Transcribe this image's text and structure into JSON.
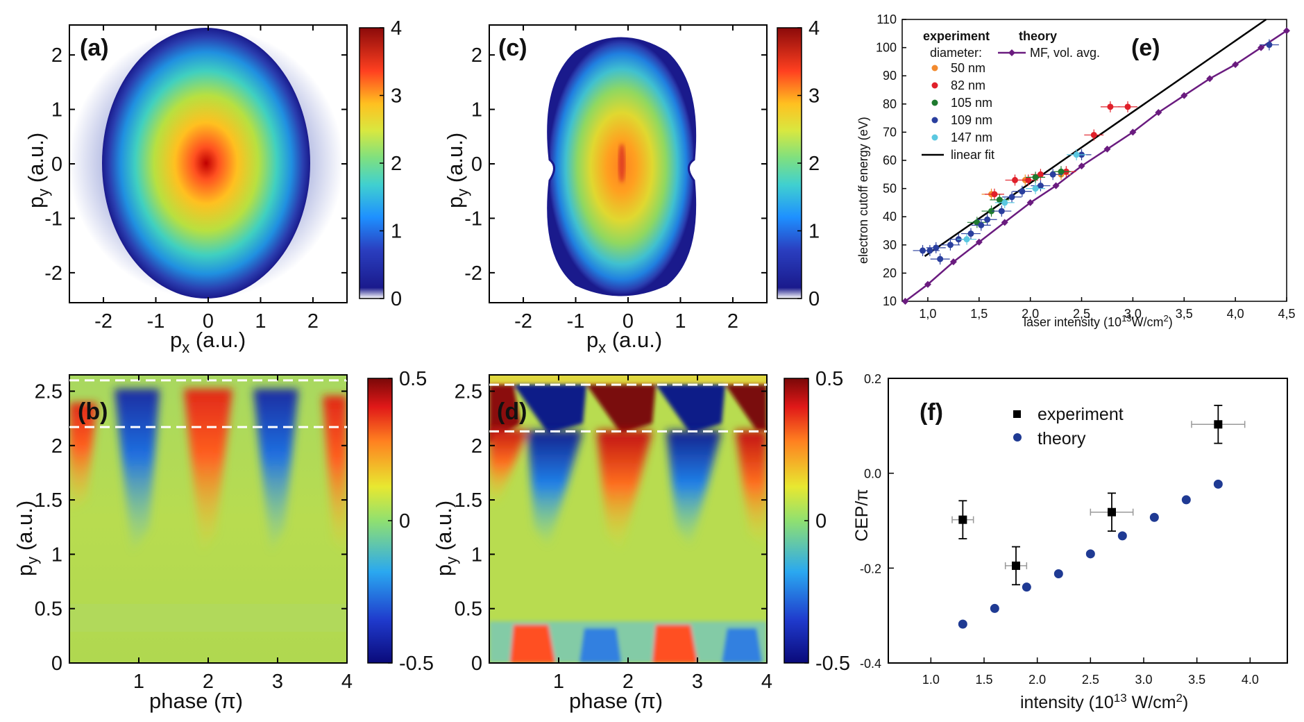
{
  "colors": {
    "jet": [
      "#00007f",
      "#0000ff",
      "#0080ff",
      "#00ffff",
      "#80ff80",
      "#ffff00",
      "#ff8000",
      "#ff0000",
      "#7f0000"
    ],
    "purple": "#6a1b7f",
    "navy": "#1f3a93",
    "d50": "#f28a2e",
    "d82": "#e0202a",
    "d105": "#1e7a2e",
    "d109": "#2a3f9e",
    "d147": "#5bc8e0"
  },
  "chart_data": [
    {
      "id": "a",
      "type": "heatmap",
      "panel_label": "(a)",
      "xlabel_main": "p",
      "xlabel_sub": "x",
      "xlabel_unit": " (a.u.)",
      "ylabel_main": "p",
      "ylabel_sub": "y",
      "ylabel_unit": " (a.u.)",
      "xlim": [
        -2.65,
        2.65
      ],
      "ylim": [
        -2.55,
        2.55
      ],
      "xticks": [
        -2,
        -1,
        0,
        1,
        2
      ],
      "yticks": [
        -2,
        -1,
        0,
        1,
        2
      ],
      "colorbar": {
        "range": [
          0,
          4
        ],
        "ticks": [
          0,
          1,
          2,
          3,
          4
        ]
      }
    },
    {
      "id": "c",
      "type": "heatmap",
      "panel_label": "(c)",
      "xlabel_main": "p",
      "xlabel_sub": "x",
      "xlabel_unit": " (a.u.)",
      "ylabel_main": "p",
      "ylabel_sub": "y",
      "ylabel_unit": " (a.u.)",
      "xlim": [
        -2.65,
        2.65
      ],
      "ylim": [
        -2.55,
        2.55
      ],
      "xticks": [
        -2,
        -1,
        0,
        1,
        2
      ],
      "yticks": [
        -2,
        -1,
        0,
        1,
        2
      ],
      "colorbar": {
        "range": [
          0,
          4
        ],
        "ticks": [
          0,
          1,
          2,
          3,
          4
        ]
      }
    },
    {
      "id": "b",
      "type": "heatmap",
      "panel_label": "(b)",
      "xlabel": "phase (π)",
      "ylabel_main": "p",
      "ylabel_sub": "y",
      "ylabel_unit": " (a.u.)",
      "xlim": [
        0,
        4
      ],
      "ylim": [
        0,
        2.65
      ],
      "xticks": [
        1,
        2,
        3,
        4
      ],
      "yticks": [
        0,
        0.5,
        1,
        1.5,
        2,
        2.5
      ],
      "dashed_lines_y": [
        2.6,
        2.17
      ],
      "colorbar": {
        "range": [
          -0.5,
          0.5
        ],
        "ticks": [
          -0.5,
          0,
          0.5
        ]
      }
    },
    {
      "id": "d",
      "type": "heatmap",
      "panel_label": "(d)",
      "xlabel": "phase (π)",
      "ylabel_main": "p",
      "ylabel_sub": "y",
      "ylabel_unit": " (a.u.)",
      "xlim": [
        0,
        4
      ],
      "ylim": [
        0,
        2.65
      ],
      "xticks": [
        1,
        2,
        3,
        4
      ],
      "yticks": [
        0,
        0.5,
        1,
        1.5,
        2,
        2.5
      ],
      "dashed_lines_y": [
        2.56,
        2.13
      ],
      "colorbar": {
        "range": [
          -0.5,
          0.5
        ],
        "ticks": [
          -0.5,
          0,
          0.5
        ]
      }
    },
    {
      "id": "e",
      "type": "scatter",
      "panel_label": "(e)",
      "xlabel": "laser intensity (10",
      "xlabel_sup": "13",
      "xlabel_tail": "W/cm",
      "xlabel_sup2": "2",
      "xlabel_end": ")",
      "ylabel": "electron cutoff energy (eV)",
      "xlim": [
        0.75,
        4.5
      ],
      "ylim": [
        10,
        110
      ],
      "xticks": [
        1.0,
        1.5,
        2.0,
        2.5,
        3.0,
        3.5,
        4.0,
        4.5
      ],
      "xtick_labels": [
        "1,0",
        "1,5",
        "2,0",
        "2,5",
        "3,0",
        "3,5",
        "4,0",
        "4,5"
      ],
      "yticks": [
        10,
        20,
        30,
        40,
        50,
        60,
        70,
        80,
        90,
        100,
        110
      ],
      "legend": {
        "experiment_title": "experiment",
        "theory_title": "theory",
        "diameter_label": "diameter:",
        "entries": [
          "50 nm",
          "82 nm",
          "105 nm",
          "109 nm",
          "147 nm",
          "linear fit"
        ],
        "theory_entry": "MF, vol. avg."
      },
      "series": [
        {
          "name": "50 nm",
          "points": [
            [
              1.62,
              48
            ],
            [
              1.95,
              53
            ],
            [
              2.3,
              55
            ]
          ]
        },
        {
          "name": "82 nm",
          "points": [
            [
              1.65,
              48
            ],
            [
              1.85,
              53
            ],
            [
              1.98,
              53
            ],
            [
              2.1,
              55
            ],
            [
              2.35,
              56
            ],
            [
              2.62,
              69
            ],
            [
              2.78,
              79
            ],
            [
              2.95,
              79
            ]
          ]
        },
        {
          "name": "105 nm",
          "points": [
            [
              1.48,
              38
            ],
            [
              1.62,
              42
            ],
            [
              1.7,
              46
            ],
            [
              2.05,
              54
            ],
            [
              2.3,
              56
            ]
          ]
        },
        {
          "name": "109 nm",
          "points": [
            [
              0.95,
              28
            ],
            [
              1.02,
              28
            ],
            [
              1.08,
              29
            ],
            [
              1.12,
              25
            ],
            [
              1.22,
              30
            ],
            [
              1.3,
              32
            ],
            [
              1.42,
              34
            ],
            [
              1.52,
              37
            ],
            [
              1.58,
              39
            ],
            [
              1.72,
              42
            ],
            [
              1.82,
              47
            ],
            [
              1.92,
              49
            ],
            [
              2.1,
              51
            ],
            [
              2.22,
              55
            ],
            [
              2.5,
              62
            ],
            [
              4.33,
              101
            ]
          ]
        },
        {
          "name": "147 nm",
          "points": [
            [
              1.38,
              32
            ],
            [
              1.75,
              45
            ],
            [
              2.05,
              50
            ],
            [
              2.45,
              62
            ]
          ]
        }
      ],
      "linear_fit": {
        "name": "linear fit",
        "line": [
          [
            0.97,
            26
          ],
          [
            4.3,
            110
          ]
        ]
      },
      "theory": {
        "name": "MF, vol. avg.",
        "points": [
          [
            0.78,
            10
          ],
          [
            1.0,
            16
          ],
          [
            1.25,
            24
          ],
          [
            1.5,
            31
          ],
          [
            1.75,
            38
          ],
          [
            2.0,
            45
          ],
          [
            2.25,
            51
          ],
          [
            2.5,
            58
          ],
          [
            2.75,
            64
          ],
          [
            3.0,
            70
          ],
          [
            3.25,
            77
          ],
          [
            3.5,
            83
          ],
          [
            3.75,
            89
          ],
          [
            4.0,
            94
          ],
          [
            4.25,
            100
          ],
          [
            4.5,
            106
          ]
        ]
      }
    },
    {
      "id": "f",
      "type": "scatter",
      "panel_label": "(f)",
      "xlabel": "intensity (10",
      "xlabel_sup": "13",
      "xlabel_tail": " W/cm",
      "xlabel_sup2": "2",
      "xlabel_end": ")",
      "ylabel": "CEP/π",
      "xlim": [
        0.6,
        4.35
      ],
      "ylim": [
        -0.4,
        0.2
      ],
      "xticks": [
        1.0,
        1.5,
        2.0,
        2.5,
        3.0,
        3.5,
        4.0
      ],
      "xtick_labels": [
        "1.0",
        "1.5",
        "2.0",
        "2.5",
        "3.0",
        "3.5",
        "4.0"
      ],
      "yticks": [
        -0.4,
        -0.2,
        0.0,
        0.2
      ],
      "ytick_labels": [
        "-0.4",
        "-0.2",
        "0.0",
        "0.2"
      ],
      "legend": [
        "experiment",
        "theory"
      ],
      "series": [
        {
          "name": "experiment",
          "points": [
            {
              "x": 1.3,
              "y": -0.098,
              "xerr": 0.1,
              "yerr": 0.04
            },
            {
              "x": 1.8,
              "y": -0.195,
              "xerr": 0.1,
              "yerr": 0.04
            },
            {
              "x": 2.7,
              "y": -0.082,
              "xerr": 0.2,
              "yerr": 0.04
            },
            {
              "x": 3.7,
              "y": 0.103,
              "xerr": 0.25,
              "yerr": 0.04
            }
          ]
        },
        {
          "name": "theory",
          "points": [
            [
              1.3,
              -0.318
            ],
            [
              1.6,
              -0.285
            ],
            [
              1.9,
              -0.24
            ],
            [
              2.2,
              -0.212
            ],
            [
              2.5,
              -0.17
            ],
            [
              2.8,
              -0.132
            ],
            [
              3.1,
              -0.093
            ],
            [
              3.4,
              -0.056
            ],
            [
              3.7,
              -0.023
            ]
          ]
        }
      ]
    }
  ]
}
